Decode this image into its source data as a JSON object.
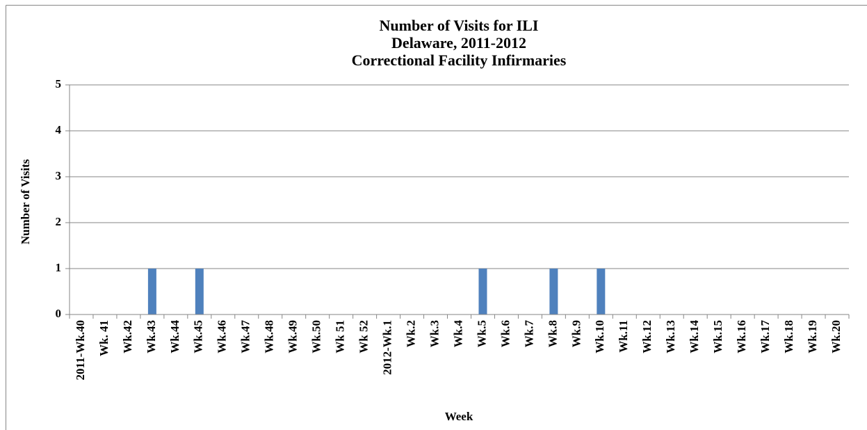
{
  "chart_data": {
    "type": "bar",
    "title": [
      "Number of Visits for ILI",
      "Delaware, 2011-2012",
      "Correctional Facility Infirmaries"
    ],
    "x_label": "Week",
    "y_label": "Number of Visits",
    "categories": [
      "2011-Wk.40",
      "Wk. 41",
      "Wk.42",
      "Wk.43",
      "Wk.44",
      "Wk.45",
      "Wk.46",
      "Wk.47",
      "Wk.48",
      "Wk.49",
      "Wk.50",
      "Wk 51",
      "Wk 52",
      "2012-Wk.1",
      "Wk.2",
      "Wk.3",
      "Wk.4",
      "Wk.5",
      "Wk.6",
      "Wk.7",
      "Wk.8",
      "Wk.9",
      "Wk.10",
      "Wk.11",
      "Wk.12",
      "Wk.13",
      "Wk.14",
      "Wk.15",
      "Wk.16",
      "Wk.17",
      "Wk.18",
      "Wk.19",
      "Wk.20"
    ],
    "values": [
      0,
      0,
      0,
      1,
      0,
      1,
      0,
      0,
      0,
      0,
      0,
      0,
      0,
      0,
      0,
      0,
      0,
      1,
      0,
      0,
      1,
      0,
      1,
      0,
      0,
      0,
      0,
      0,
      0,
      0,
      0,
      0,
      0
    ],
    "color": "#4f81bd",
    "ylim": [
      0,
      5
    ],
    "yticks": [
      0,
      1,
      2,
      3,
      4,
      5
    ],
    "grid": true
  }
}
